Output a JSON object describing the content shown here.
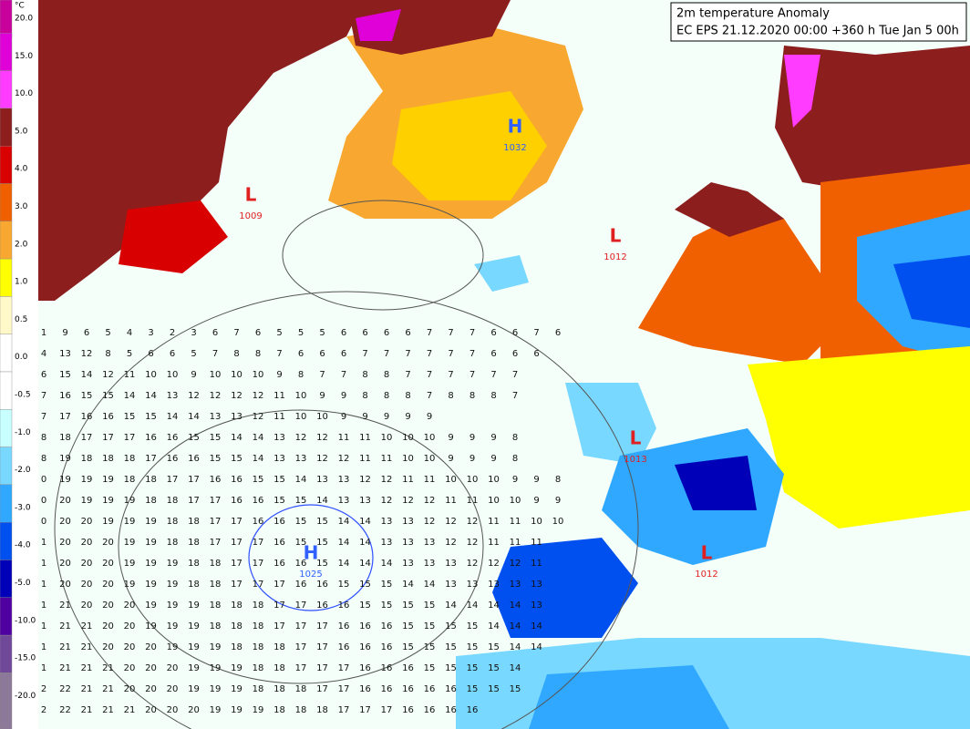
{
  "title": {
    "line1": "2m temperature Anomaly",
    "line2": "EC EPS 21.12.2020 00:00 +360 h Tue Jan 5 00h"
  },
  "legend": {
    "unit": "°C",
    "labels": [
      "20.0",
      "15.0",
      "10.0",
      "5.0",
      "4.0",
      "3.0",
      "2.0",
      "1.0",
      "0.5",
      "0.0",
      "-0.5",
      "-1.0",
      "-2.0",
      "-3.0",
      "-4.0",
      "-5.0",
      "-10.0",
      "-15.0",
      "-20.0"
    ],
    "colors": [
      "#c8009c",
      "#e000d8",
      "#ff3cff",
      "#8c1e1e",
      "#d80000",
      "#f06000",
      "#f8a830",
      "#ffff00",
      "#fff8c8",
      "#ffffff",
      "#ffffff",
      "#c8ffff",
      "#78d8ff",
      "#30a8ff",
      "#0050f0",
      "#0000b8",
      "#5000a0",
      "#70489a",
      "#8c7898"
    ]
  },
  "centers": [
    {
      "symbol": "L",
      "pressure": "1009"
    },
    {
      "symbol": "H",
      "pressure": "1032"
    },
    {
      "symbol": "L",
      "pressure": "1012"
    },
    {
      "symbol": "L",
      "pressure": "1013"
    },
    {
      "symbol": "H",
      "pressure": "1025"
    },
    {
      "symbol": "L",
      "pressure": "1012"
    }
  ],
  "grid": {
    "rows": [
      [
        "1",
        "9",
        "6",
        "5",
        "4",
        "3",
        "2",
        "3",
        "6",
        "7",
        "6",
        "5",
        "5",
        "5",
        "6",
        "6",
        "6",
        "6",
        "7",
        "7",
        "7",
        "6",
        "6",
        "7",
        "6"
      ],
      [
        "4",
        "13",
        "12",
        "8",
        "5",
        "6",
        "6",
        "5",
        "7",
        "8",
        "8",
        "7",
        "6",
        "6",
        "6",
        "7",
        "7",
        "7",
        "7",
        "7",
        "7",
        "6",
        "6",
        "6"
      ],
      [
        "6",
        "15",
        "14",
        "12",
        "11",
        "10",
        "10",
        "9",
        "10",
        "10",
        "10",
        "9",
        "8",
        "7",
        "7",
        "8",
        "8",
        "7",
        "7",
        "7",
        "7",
        "7",
        "7"
      ],
      [
        "7",
        "16",
        "15",
        "15",
        "14",
        "14",
        "13",
        "12",
        "12",
        "12",
        "12",
        "11",
        "10",
        "9",
        "9",
        "8",
        "8",
        "8",
        "7",
        "8",
        "8",
        "8",
        "7"
      ],
      [
        "7",
        "17",
        "16",
        "16",
        "15",
        "15",
        "14",
        "14",
        "13",
        "13",
        "12",
        "11",
        "10",
        "10",
        "9",
        "9",
        "9",
        "9",
        "9"
      ],
      [
        "8",
        "18",
        "17",
        "17",
        "17",
        "16",
        "16",
        "15",
        "15",
        "14",
        "14",
        "13",
        "12",
        "12",
        "11",
        "11",
        "10",
        "10",
        "10",
        "9",
        "9",
        "9",
        "8"
      ],
      [
        "8",
        "19",
        "18",
        "18",
        "18",
        "17",
        "16",
        "16",
        "15",
        "15",
        "14",
        "13",
        "13",
        "12",
        "12",
        "11",
        "11",
        "10",
        "10",
        "9",
        "9",
        "9",
        "8"
      ],
      [
        "0",
        "19",
        "19",
        "19",
        "18",
        "18",
        "17",
        "17",
        "16",
        "16",
        "15",
        "15",
        "14",
        "13",
        "13",
        "12",
        "12",
        "11",
        "11",
        "10",
        "10",
        "10",
        "9",
        "9",
        "8"
      ],
      [
        "0",
        "20",
        "19",
        "19",
        "19",
        "18",
        "18",
        "17",
        "17",
        "16",
        "16",
        "15",
        "15",
        "14",
        "13",
        "13",
        "12",
        "12",
        "12",
        "11",
        "11",
        "10",
        "10",
        "9",
        "9"
      ],
      [
        "0",
        "20",
        "20",
        "19",
        "19",
        "19",
        "18",
        "18",
        "17",
        "17",
        "16",
        "16",
        "15",
        "15",
        "14",
        "14",
        "13",
        "13",
        "12",
        "12",
        "12",
        "11",
        "11",
        "10",
        "10"
      ],
      [
        "1",
        "20",
        "20",
        "20",
        "19",
        "19",
        "18",
        "18",
        "17",
        "17",
        "17",
        "16",
        "15",
        "15",
        "14",
        "14",
        "13",
        "13",
        "13",
        "12",
        "12",
        "11",
        "11",
        "11"
      ],
      [
        "1",
        "20",
        "20",
        "20",
        "19",
        "19",
        "19",
        "18",
        "18",
        "17",
        "17",
        "16",
        "16",
        "15",
        "14",
        "14",
        "14",
        "13",
        "13",
        "13",
        "12",
        "12",
        "12",
        "11"
      ],
      [
        "1",
        "20",
        "20",
        "20",
        "19",
        "19",
        "19",
        "18",
        "18",
        "17",
        "17",
        "17",
        "16",
        "16",
        "15",
        "15",
        "15",
        "14",
        "14",
        "13",
        "13",
        "13",
        "13",
        "13"
      ],
      [
        "1",
        "21",
        "20",
        "20",
        "20",
        "19",
        "19",
        "19",
        "18",
        "18",
        "18",
        "17",
        "17",
        "16",
        "16",
        "15",
        "15",
        "15",
        "15",
        "14",
        "14",
        "14",
        "14",
        "13"
      ],
      [
        "1",
        "21",
        "21",
        "20",
        "20",
        "19",
        "19",
        "19",
        "18",
        "18",
        "18",
        "17",
        "17",
        "17",
        "16",
        "16",
        "16",
        "15",
        "15",
        "15",
        "15",
        "14",
        "14",
        "14"
      ],
      [
        "1",
        "21",
        "21",
        "20",
        "20",
        "20",
        "19",
        "19",
        "19",
        "18",
        "18",
        "18",
        "17",
        "17",
        "16",
        "16",
        "16",
        "15",
        "15",
        "15",
        "15",
        "15",
        "14",
        "14"
      ],
      [
        "1",
        "21",
        "21",
        "21",
        "20",
        "20",
        "20",
        "19",
        "19",
        "19",
        "18",
        "18",
        "17",
        "17",
        "17",
        "16",
        "16",
        "16",
        "15",
        "15",
        "15",
        "15",
        "14"
      ],
      [
        "2",
        "22",
        "21",
        "21",
        "20",
        "20",
        "20",
        "19",
        "19",
        "19",
        "18",
        "18",
        "18",
        "17",
        "17",
        "16",
        "16",
        "16",
        "16",
        "16",
        "15",
        "15",
        "15"
      ],
      [
        "2",
        "22",
        "21",
        "21",
        "21",
        "20",
        "20",
        "20",
        "19",
        "19",
        "19",
        "18",
        "18",
        "18",
        "17",
        "17",
        "17",
        "16",
        "16",
        "16",
        "16"
      ]
    ]
  }
}
